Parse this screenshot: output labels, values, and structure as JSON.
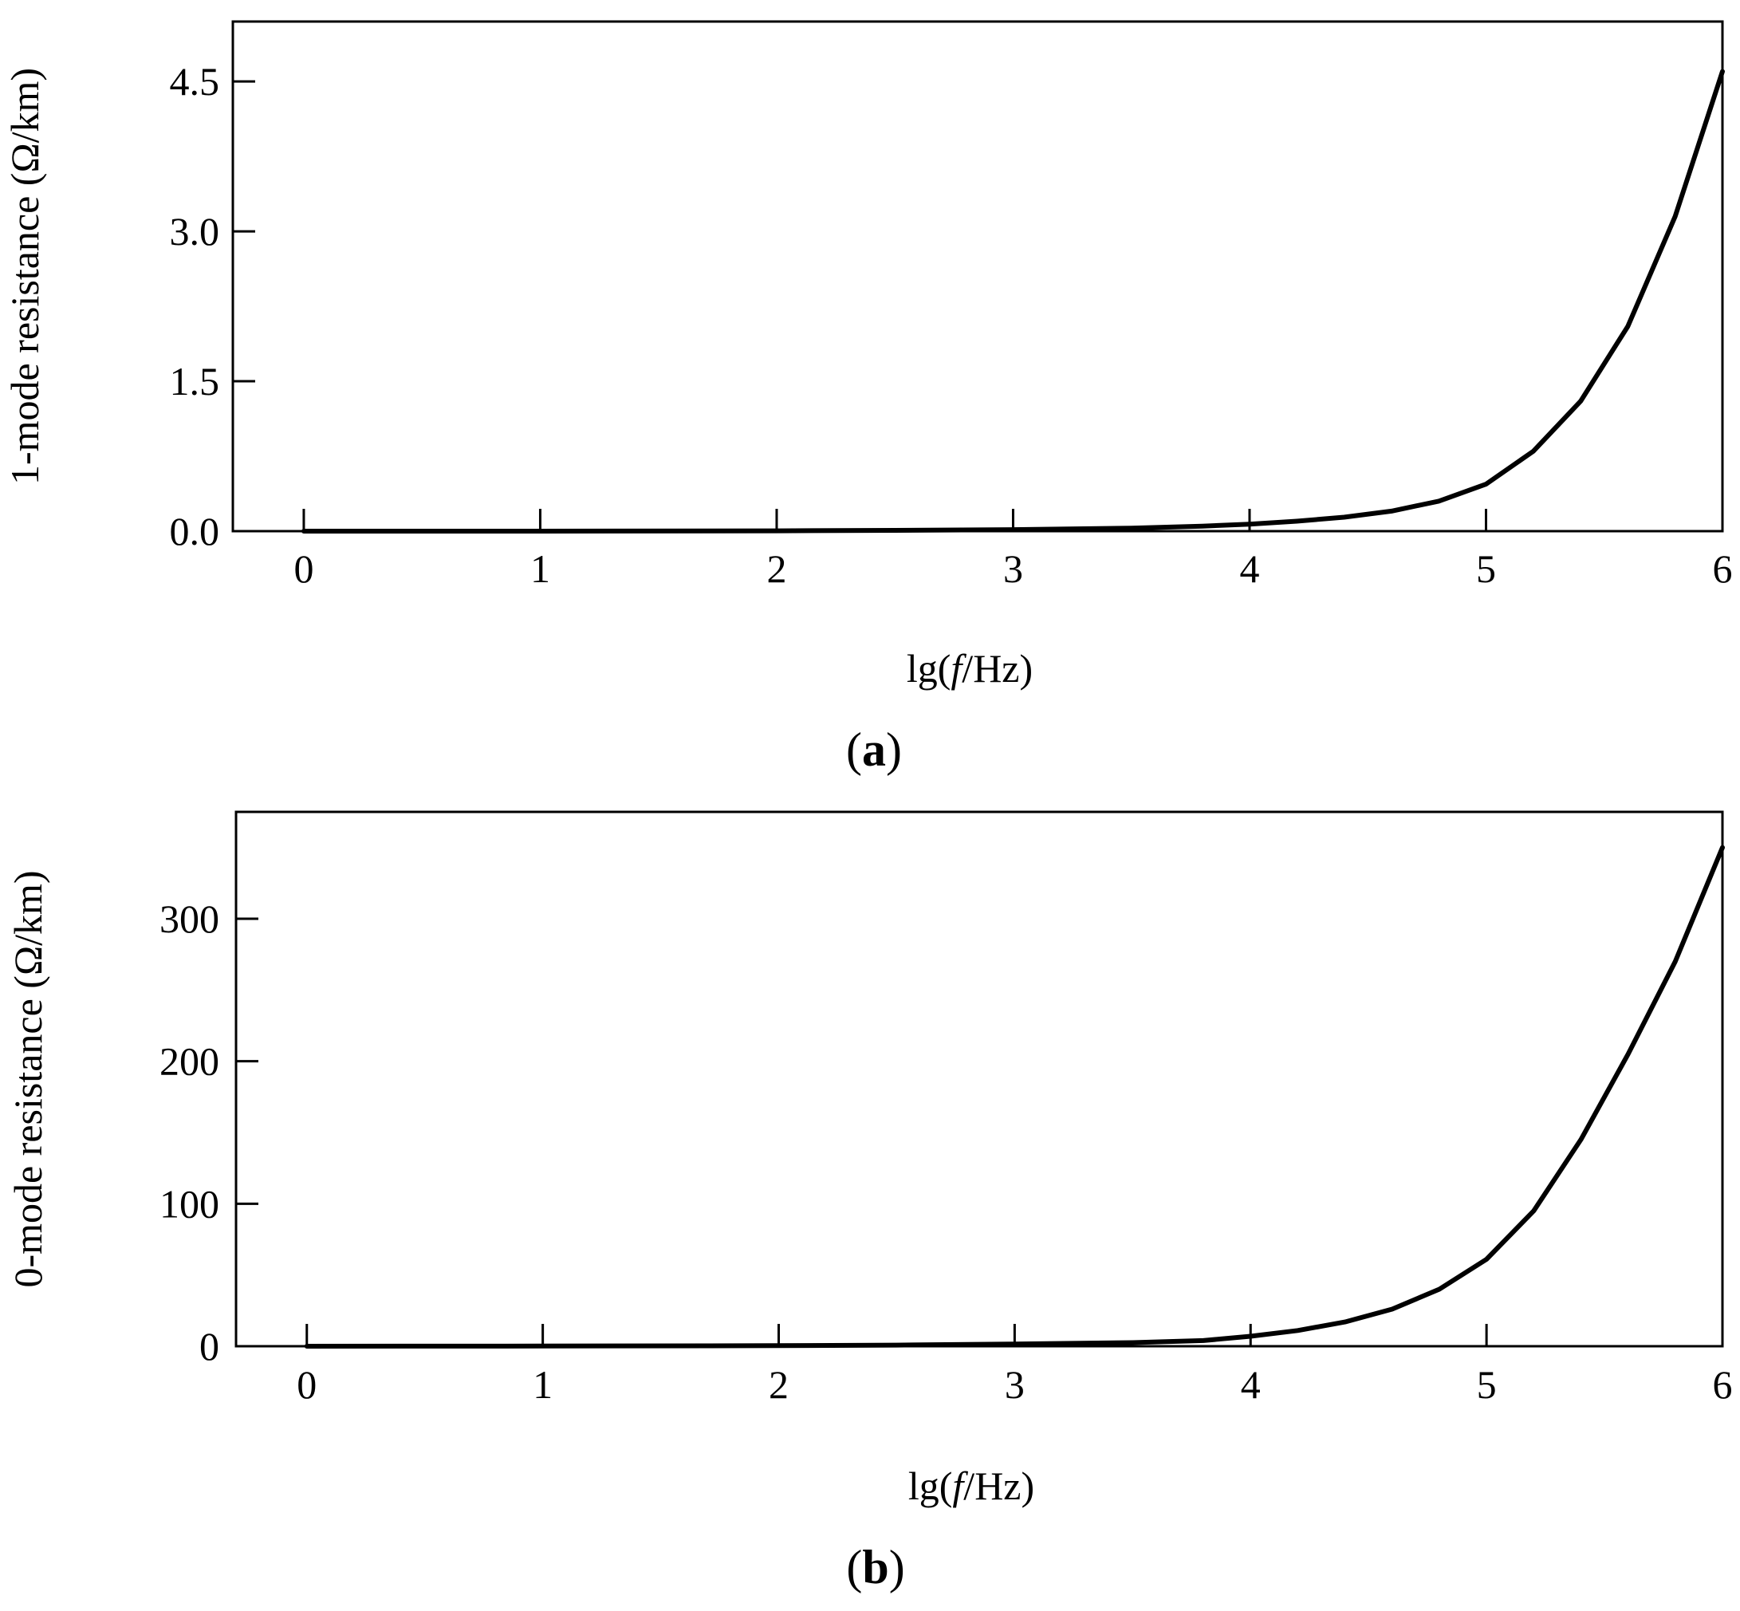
{
  "chart_data": [
    {
      "type": "line",
      "panel_label": "a",
      "xlabel_prefix": "lg(",
      "xlabel_italic": "f",
      "xlabel_suffix": "/Hz)",
      "ylabel": "1-mode resistance (Ω/km)",
      "xlim": [
        -0.3,
        6
      ],
      "ylim": [
        0,
        5.1
      ],
      "xticks": [
        0,
        1,
        2,
        3,
        4,
        5,
        6
      ],
      "xtick_labels": [
        "0",
        "1",
        "2",
        "3",
        "4",
        "5",
        "6"
      ],
      "yticks": [
        0,
        1.5,
        3.0,
        4.5
      ],
      "ytick_labels": [
        "0.0",
        "1.5",
        "3.0",
        "4.5"
      ],
      "grid": false,
      "line_color": "#000000",
      "series": [
        {
          "x": [
            0,
            1,
            2,
            2.5,
            3,
            3.5,
            3.8,
            4,
            4.2,
            4.4,
            4.6,
            4.8,
            5,
            5.2,
            5.4,
            5.6,
            5.8,
            6
          ],
          "y": [
            0.0,
            0.0,
            0.003,
            0.008,
            0.015,
            0.03,
            0.05,
            0.07,
            0.1,
            0.14,
            0.2,
            0.3,
            0.47,
            0.8,
            1.3,
            2.05,
            3.15,
            4.6
          ]
        }
      ]
    },
    {
      "type": "line",
      "panel_label": "b",
      "xlabel_prefix": "lg(",
      "xlabel_italic": "f",
      "xlabel_suffix": "/Hz)",
      "ylabel": "0-mode resistance (Ω/km)",
      "xlim": [
        -0.3,
        6
      ],
      "ylim": [
        0,
        375
      ],
      "xticks": [
        0,
        1,
        2,
        3,
        4,
        5,
        6
      ],
      "xtick_labels": [
        "0",
        "1",
        "2",
        "3",
        "4",
        "5",
        "6"
      ],
      "yticks": [
        0,
        100,
        200,
        300
      ],
      "ytick_labels": [
        "0",
        "100",
        "200",
        "300"
      ],
      "grid": false,
      "line_color": "#000000",
      "series": [
        {
          "x": [
            0,
            1,
            2,
            2.5,
            3,
            3.5,
            3.8,
            4,
            4.2,
            4.4,
            4.6,
            4.8,
            5,
            5.2,
            5.4,
            5.6,
            5.8,
            6
          ],
          "y": [
            0.0,
            0.1,
            0.4,
            0.8,
            1.5,
            2.5,
            4,
            7,
            11,
            17,
            26,
            40,
            61,
            95,
            145,
            205,
            270,
            350
          ]
        }
      ]
    }
  ]
}
